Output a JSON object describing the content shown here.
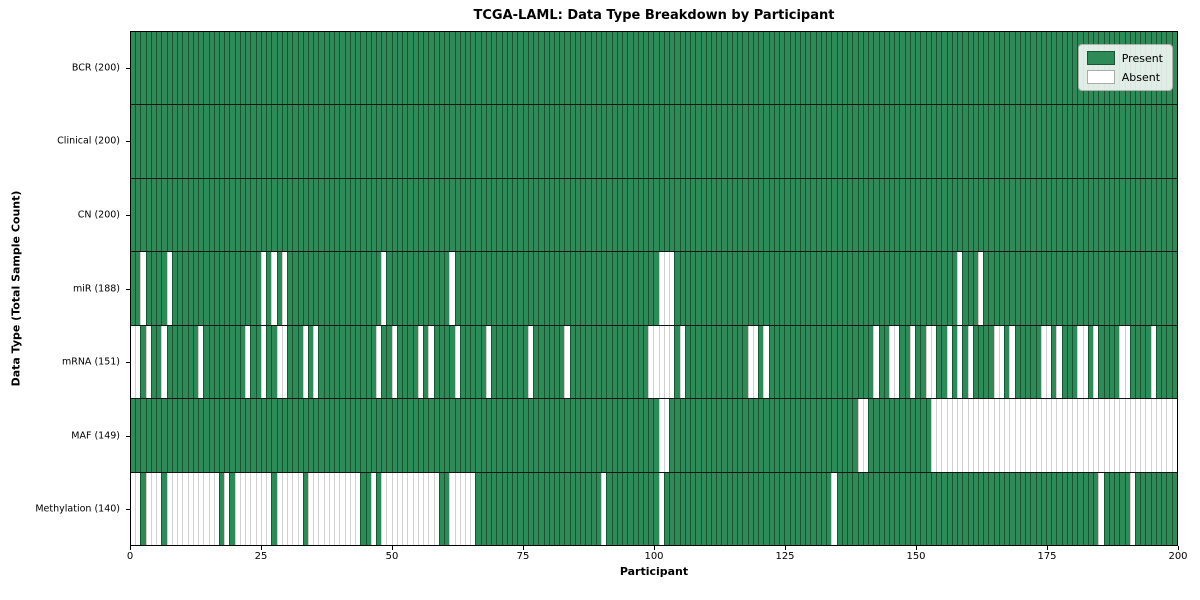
{
  "title": "TCGA-LAML: Data Type Breakdown by Participant",
  "xlabel": "Participant",
  "ylabel": "Data Type (Total Sample Count)",
  "legend": {
    "present_label": "Present",
    "absent_label": "Absent"
  },
  "colors": {
    "present": "#2e8b57",
    "absent": "#ffffff",
    "grid_line": "rgba(10,40,25,0.55)",
    "absent_grid_line": "rgba(0,0,0,0.18)"
  },
  "chart_data": {
    "type": "heatmap",
    "subtype": "presence-absence-matrix",
    "x_axis": {
      "label": "Participant",
      "min": 0,
      "max": 200,
      "ticks": [
        0,
        25,
        50,
        75,
        100,
        125,
        150,
        175,
        200
      ]
    },
    "n_participants": 200,
    "legend_position": "upper right",
    "rows": [
      {
        "label": "BCR (200)",
        "data_type": "BCR",
        "present_count": 200,
        "absent_participants": []
      },
      {
        "label": "Clinical (200)",
        "data_type": "Clinical",
        "present_count": 200,
        "absent_participants": []
      },
      {
        "label": "CN (200)",
        "data_type": "CN",
        "present_count": 200,
        "absent_participants": []
      },
      {
        "label": "miR (188)",
        "data_type": "miR",
        "present_count": 188,
        "absent_participants": [
          2,
          7,
          25,
          27,
          29,
          48,
          61,
          101,
          102,
          103,
          158,
          162
        ]
      },
      {
        "label": "mRNA (151)",
        "data_type": "mRNA",
        "present_count": 151,
        "absent_participants": [
          0,
          1,
          3,
          6,
          13,
          22,
          25,
          28,
          29,
          33,
          35,
          47,
          50,
          55,
          57,
          62,
          68,
          76,
          83,
          99,
          100,
          101,
          102,
          103,
          105,
          118,
          119,
          121,
          142,
          145,
          146,
          149,
          152,
          153,
          156,
          158,
          160,
          165,
          166,
          168,
          174,
          175,
          177,
          181,
          182,
          184,
          189,
          190,
          195
        ]
      },
      {
        "label": "MAF (149)",
        "data_type": "MAF",
        "present_count": 149,
        "absent_participants": [
          101,
          102,
          139,
          140,
          153,
          154,
          155,
          156,
          157,
          158,
          159,
          160,
          161,
          162,
          163,
          164,
          165,
          166,
          167,
          168,
          169,
          170,
          171,
          172,
          173,
          174,
          175,
          176,
          177,
          178,
          179,
          180,
          181,
          182,
          183,
          184,
          185,
          186,
          187,
          188,
          189,
          190,
          191,
          192,
          193,
          194,
          195,
          196,
          197,
          198,
          199
        ]
      },
      {
        "label": "Methylation (140)",
        "data_type": "Methylation",
        "present_count": 140,
        "absent_participants": [
          0,
          1,
          3,
          4,
          5,
          7,
          8,
          9,
          10,
          11,
          12,
          13,
          14,
          15,
          16,
          18,
          20,
          21,
          22,
          23,
          24,
          25,
          26,
          28,
          29,
          30,
          31,
          32,
          34,
          35,
          36,
          37,
          38,
          39,
          40,
          41,
          42,
          43,
          46,
          48,
          49,
          50,
          51,
          52,
          53,
          54,
          55,
          56,
          57,
          58,
          61,
          62,
          63,
          64,
          65,
          90,
          101,
          134,
          185,
          191
        ]
      }
    ]
  }
}
